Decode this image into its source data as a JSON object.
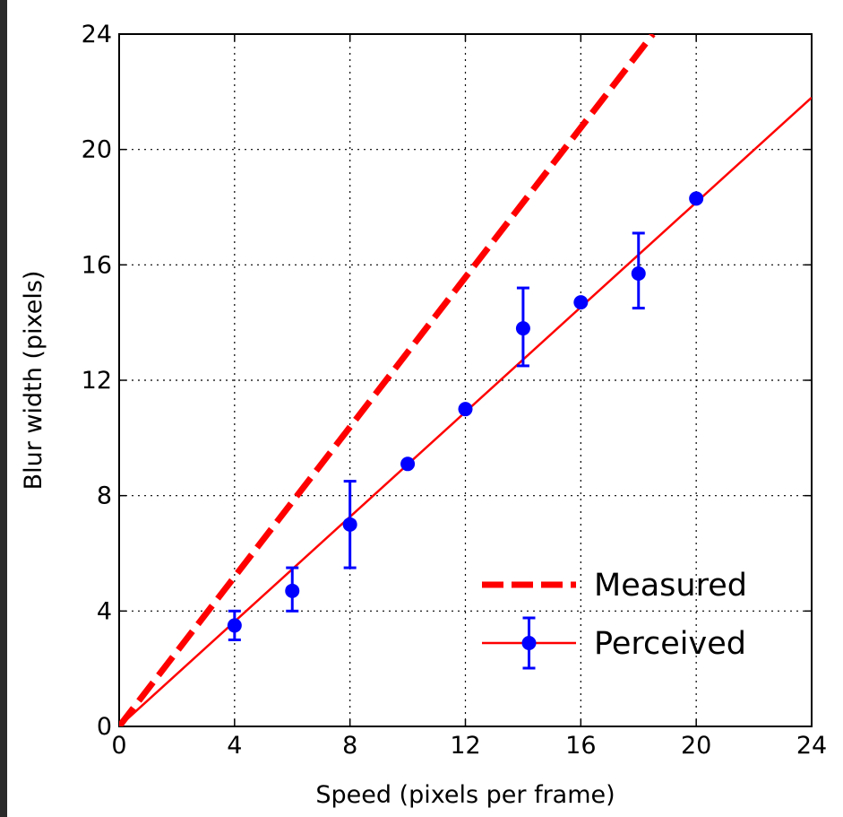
{
  "chart_data": {
    "type": "line",
    "xlabel": "Speed (pixels per frame)",
    "ylabel": "Blur width (pixels)",
    "xlim": [
      0,
      24
    ],
    "ylim": [
      0,
      24
    ],
    "xticks": [
      0,
      4,
      8,
      12,
      16,
      20,
      24
    ],
    "yticks": [
      0,
      4,
      8,
      12,
      16,
      20,
      24
    ],
    "xtick_labels": [
      "0",
      "4",
      "8",
      "12",
      "16",
      "20",
      "24"
    ],
    "ytick_labels": [
      "0",
      "4",
      "8",
      "12",
      "16",
      "20",
      "24"
    ],
    "grid": true,
    "legend_position": "bottom-right",
    "series": [
      {
        "name": "Measured",
        "style": "dashed",
        "color": "#ff0000",
        "x": [
          0,
          18.5
        ],
        "y": [
          0,
          24
        ]
      },
      {
        "name": "Perceived",
        "style": "solid-with-markers",
        "color": "#ff0000",
        "marker_color": "#0000ff",
        "fit": {
          "x": [
            0,
            24
          ],
          "y": [
            0,
            21.8
          ]
        },
        "points": [
          {
            "x": 4,
            "y": 3.5,
            "err_low": 3.0,
            "err_high": 4.0
          },
          {
            "x": 6,
            "y": 4.7,
            "err_low": 4.0,
            "err_high": 5.5
          },
          {
            "x": 8,
            "y": 7.0,
            "err_low": 5.5,
            "err_high": 8.5
          },
          {
            "x": 10,
            "y": 9.1
          },
          {
            "x": 12,
            "y": 11.0
          },
          {
            "x": 14,
            "y": 13.8,
            "err_low": 12.5,
            "err_high": 15.2
          },
          {
            "x": 16,
            "y": 14.7
          },
          {
            "x": 18,
            "y": 15.7,
            "err_low": 14.5,
            "err_high": 17.1
          },
          {
            "x": 20,
            "y": 18.3
          }
        ]
      }
    ]
  }
}
